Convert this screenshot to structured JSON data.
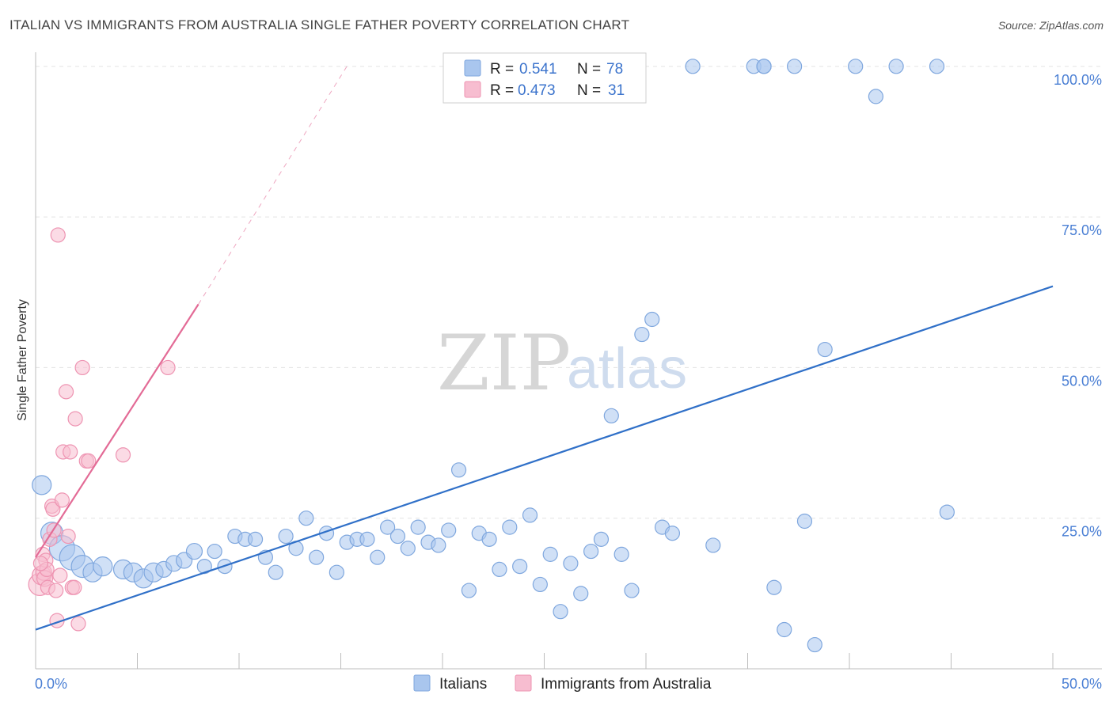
{
  "title": "ITALIAN VS IMMIGRANTS FROM AUSTRALIA SINGLE FATHER POVERTY CORRELATION CHART",
  "source": "Source: ZipAtlas.com",
  "watermark": {
    "zip": "ZIP",
    "atlas": "atlas"
  },
  "chart_data": {
    "type": "scatter",
    "xlabel": "",
    "ylabel": "Single Father Poverty",
    "xlim": [
      0,
      50
    ],
    "ylim": [
      0,
      100
    ],
    "x_tick_labels": {
      "min": "0.0%",
      "max": "50.0%"
    },
    "y_ticks": [
      {
        "value": 25,
        "label": "25.0%"
      },
      {
        "value": 50,
        "label": "50.0%"
      },
      {
        "value": 75,
        "label": "75.0%"
      },
      {
        "value": 100,
        "label": "100.0%"
      }
    ],
    "grid": true,
    "legend_position": "top-center",
    "stats": [
      {
        "series": "Italians",
        "r_label": "R =",
        "r": "0.541",
        "n_label": "N =",
        "n": "78"
      },
      {
        "series": "Immigrants from Australia",
        "r_label": "R =",
        "r": "0.473",
        "n_label": "N =",
        "n": "31"
      }
    ],
    "series": [
      {
        "name": "Italians",
        "color": "#a9c6ee",
        "edge": "#7fa7de",
        "trend_color": "#3070c8",
        "trend": {
          "x0": 0,
          "y0": 6.5,
          "x1": 50,
          "y1": 63.5,
          "dashed_extension": false
        },
        "points": [
          [
            0.3,
            30.5,
            12
          ],
          [
            0.8,
            22.5,
            14
          ],
          [
            1.3,
            20,
            16
          ],
          [
            1.8,
            18.5,
            16
          ],
          [
            2.3,
            17,
            14
          ],
          [
            2.8,
            16,
            12
          ],
          [
            3.3,
            17,
            12
          ],
          [
            4.3,
            16.5,
            12
          ],
          [
            4.8,
            16,
            12
          ],
          [
            5.3,
            15,
            12
          ],
          [
            5.8,
            16,
            12
          ],
          [
            6.3,
            16.5,
            10
          ],
          [
            6.8,
            17.5,
            10
          ],
          [
            7.3,
            18,
            10
          ],
          [
            7.8,
            19.5,
            10
          ],
          [
            8.3,
            17,
            9
          ],
          [
            8.8,
            19.5,
            9
          ],
          [
            9.3,
            17,
            9
          ],
          [
            9.8,
            22,
            9
          ],
          [
            10.3,
            21.5,
            9
          ],
          [
            10.8,
            21.5,
            9
          ],
          [
            11.3,
            18.5,
            9
          ],
          [
            11.8,
            16,
            9
          ],
          [
            12.3,
            22,
            9
          ],
          [
            12.8,
            20,
            9
          ],
          [
            13.3,
            25,
            9
          ],
          [
            13.8,
            18.5,
            9
          ],
          [
            14.3,
            22.5,
            9
          ],
          [
            14.8,
            16,
            9
          ],
          [
            15.3,
            21,
            9
          ],
          [
            15.8,
            21.5,
            9
          ],
          [
            16.3,
            21.5,
            9
          ],
          [
            16.8,
            18.5,
            9
          ],
          [
            17.3,
            23.5,
            9
          ],
          [
            17.8,
            22,
            9
          ],
          [
            18.3,
            20,
            9
          ],
          [
            18.8,
            23.5,
            9
          ],
          [
            19.3,
            21,
            9
          ],
          [
            19.8,
            20.5,
            9
          ],
          [
            20.3,
            23,
            9
          ],
          [
            20.8,
            33,
            9
          ],
          [
            21.3,
            13,
            9
          ],
          [
            21.8,
            22.5,
            9
          ],
          [
            22.3,
            21.5,
            9
          ],
          [
            22.8,
            16.5,
            9
          ],
          [
            23.3,
            23.5,
            9
          ],
          [
            23.8,
            17,
            9
          ],
          [
            24.3,
            25.5,
            9
          ],
          [
            24.8,
            14,
            9
          ],
          [
            25.3,
            19,
            9
          ],
          [
            25.8,
            9.5,
            9
          ],
          [
            26.3,
            17.5,
            9
          ],
          [
            26.8,
            12.5,
            9
          ],
          [
            27.3,
            19.5,
            9
          ],
          [
            27.8,
            21.5,
            9
          ],
          [
            28.3,
            42,
            9
          ],
          [
            28.8,
            19,
            9
          ],
          [
            29.3,
            13,
            9
          ],
          [
            29.8,
            55.5,
            9
          ],
          [
            30.3,
            58,
            9
          ],
          [
            30.8,
            23.5,
            9
          ],
          [
            31.3,
            22.5,
            9
          ],
          [
            32.3,
            100,
            9
          ],
          [
            33.3,
            20.5,
            9
          ],
          [
            35.3,
            100,
            9
          ],
          [
            35.8,
            100,
            9
          ],
          [
            36.3,
            13.5,
            9
          ],
          [
            36.8,
            6.5,
            9
          ],
          [
            37.3,
            100,
            9
          ],
          [
            37.8,
            24.5,
            9
          ],
          [
            38.3,
            4,
            9
          ],
          [
            38.8,
            53,
            9
          ],
          [
            40.3,
            100,
            9
          ],
          [
            41.3,
            95,
            9
          ],
          [
            42.3,
            100,
            9
          ],
          [
            44.3,
            100,
            9
          ],
          [
            44.8,
            26,
            9
          ],
          [
            35.8,
            100,
            9
          ]
        ]
      },
      {
        "name": "Immigrants from Australia",
        "color": "#f7bdd0",
        "edge": "#ee94b2",
        "trend_color": "#e36b96",
        "trend": {
          "x0": 0,
          "y0": 18.5,
          "x1": 8,
          "y1": 60.5,
          "dashed_extension": true,
          "dash_x1": 15.3,
          "dash_y1": 100
        },
        "points": [
          [
            0.2,
            14,
            14
          ],
          [
            0.3,
            15.5,
            12
          ],
          [
            0.35,
            19,
            9
          ],
          [
            0.4,
            16,
            10
          ],
          [
            0.45,
            15,
            10
          ],
          [
            0.5,
            18,
            9
          ],
          [
            0.55,
            16.5,
            9
          ],
          [
            0.6,
            13.5,
            9
          ],
          [
            0.7,
            21.5,
            9
          ],
          [
            0.8,
            27,
            9
          ],
          [
            0.85,
            26.5,
            9
          ],
          [
            0.9,
            23,
            9
          ],
          [
            1.0,
            13,
            9
          ],
          [
            1.05,
            8,
            9
          ],
          [
            1.1,
            72,
            9
          ],
          [
            1.2,
            15.5,
            9
          ],
          [
            1.3,
            28,
            9
          ],
          [
            1.35,
            36,
            9
          ],
          [
            1.5,
            46,
            9
          ],
          [
            1.6,
            22,
            9
          ],
          [
            1.7,
            36,
            9
          ],
          [
            1.8,
            13.5,
            9
          ],
          [
            1.9,
            13.5,
            9
          ],
          [
            1.95,
            41.5,
            9
          ],
          [
            2.1,
            7.5,
            9
          ],
          [
            2.3,
            50,
            9
          ],
          [
            2.5,
            34.5,
            9
          ],
          [
            2.6,
            34.5,
            9
          ],
          [
            4.3,
            35.5,
            9
          ],
          [
            6.5,
            50,
            9
          ],
          [
            0.25,
            17.5,
            9
          ]
        ]
      }
    ]
  }
}
